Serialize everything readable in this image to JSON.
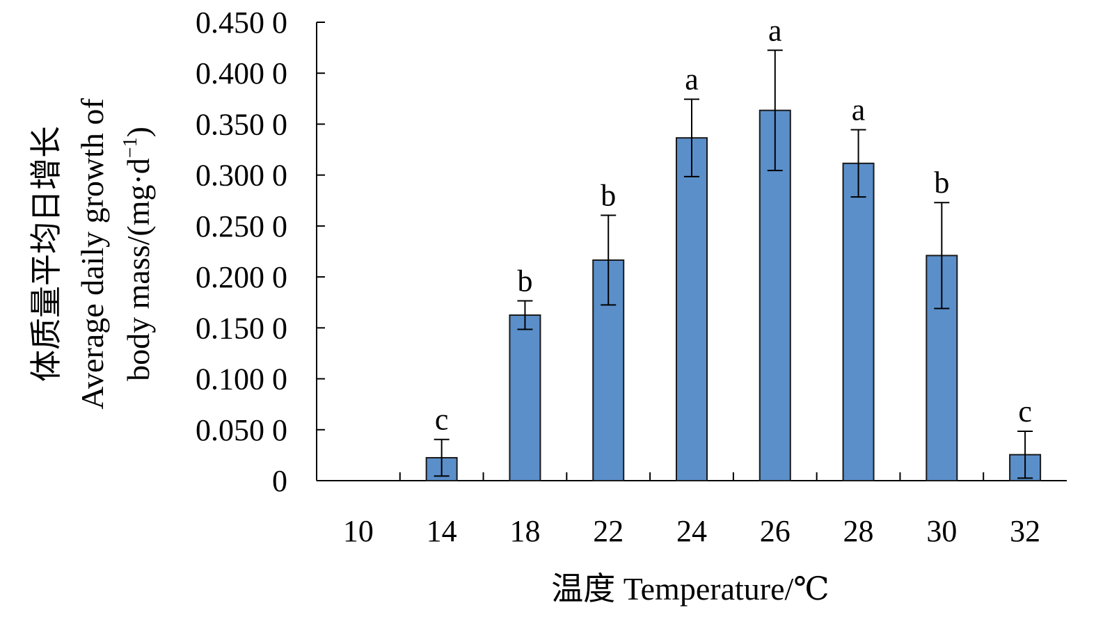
{
  "chart_data": {
    "type": "bar",
    "categories": [
      "10",
      "14",
      "18",
      "22",
      "24",
      "26",
      "28",
      "30",
      "32"
    ],
    "values": [
      0,
      0.0225,
      0.1625,
      0.2165,
      0.3365,
      0.3635,
      0.3115,
      0.221,
      0.0255
    ],
    "error": [
      0,
      0.018,
      0.014,
      0.044,
      0.038,
      0.059,
      0.033,
      0.052,
      0.023
    ],
    "significance": [
      "",
      "c",
      "b",
      "b",
      "a",
      "a",
      "a",
      "b",
      "c"
    ],
    "ylim": [
      0,
      0.45
    ],
    "yticks": [
      0,
      0.05,
      0.1,
      0.15,
      0.2,
      0.25,
      0.3,
      0.35,
      0.4,
      0.45
    ],
    "ytick_labels": [
      "0",
      "0.050 0",
      "0.100 0",
      "0.150 0",
      "0.200 0",
      "0.250 0",
      "0.300 0",
      "0.350 0",
      "0.400 0",
      "0.450 0"
    ],
    "ylabel_zh": "体质量平均日增长",
    "ylabel_en_line1": "Average daily growth of",
    "ylabel_en_line2_base": "body mass/(mg·d",
    "ylabel_en_line2_sup": "−1",
    "ylabel_en_line2_close": ")",
    "xlabel": "温度 Temperature/℃",
    "bar_color": "#5b8fca",
    "bar_edge_color": "#1a1a1a",
    "grid": false,
    "legend": "none"
  }
}
